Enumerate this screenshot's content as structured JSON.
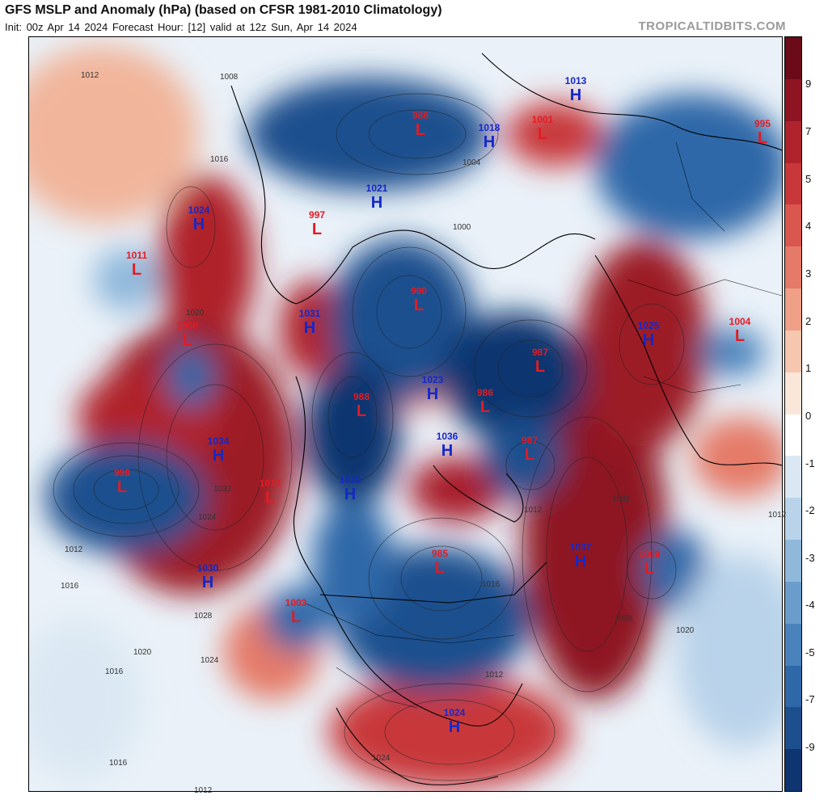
{
  "header": {
    "title": "GFS MSLP and Anomaly (hPa) (based on CFSR 1981-2010 Climatology)",
    "subtitle": "Init: 00z Apr 14 2024   Forecast Hour: [12]   valid at 12z Sun, Apr 14 2024",
    "brand": "TROPICALTIDBITS.COM"
  },
  "colorbar": {
    "labels": [
      "9",
      "7",
      "5",
      "4",
      "3",
      "2",
      "1",
      "0",
      "-1",
      "-2",
      "-3",
      "-4",
      "-5",
      "-7",
      "-9"
    ],
    "colors": [
      "#6b0a18",
      "#8e1424",
      "#b0232c",
      "#c8383a",
      "#d9574f",
      "#e57a68",
      "#efa087",
      "#f6c6af",
      "#fbe6da",
      "#ffffff",
      "#dbe8f3",
      "#b9d3ea",
      "#8fb8db",
      "#6a9dcc",
      "#4a82bb",
      "#2f68a8",
      "#1d4f8e",
      "#0f3570"
    ]
  },
  "pressure_centers": [
    {
      "type": "L",
      "value": "986"
    },
    {
      "type": "H",
      "value": "1013"
    },
    {
      "type": "H",
      "value": "1018"
    },
    {
      "type": "L",
      "value": "1001"
    },
    {
      "type": "L",
      "value": "995"
    },
    {
      "type": "H",
      "value": "1021"
    },
    {
      "type": "L",
      "value": "997"
    },
    {
      "type": "H",
      "value": "1024"
    },
    {
      "type": "L",
      "value": "1011"
    },
    {
      "type": "L",
      "value": "990"
    },
    {
      "type": "H",
      "value": "1031"
    },
    {
      "type": "L",
      "value": "1000"
    },
    {
      "type": "L",
      "value": "987"
    },
    {
      "type": "H",
      "value": "1025"
    },
    {
      "type": "L",
      "value": "1004"
    },
    {
      "type": "L",
      "value": "988"
    },
    {
      "type": "H",
      "value": "1023"
    },
    {
      "type": "L",
      "value": "986"
    },
    {
      "type": "H",
      "value": "1034"
    },
    {
      "type": "H",
      "value": "1036"
    },
    {
      "type": "L",
      "value": "987"
    },
    {
      "type": "L",
      "value": "998"
    },
    {
      "type": "L",
      "value": "1013"
    },
    {
      "type": "H",
      "value": "1019"
    },
    {
      "type": "L",
      "value": "985"
    },
    {
      "type": "H",
      "value": "1037"
    },
    {
      "type": "L",
      "value": "1009"
    },
    {
      "type": "H",
      "value": "1030"
    },
    {
      "type": "L",
      "value": "1003"
    },
    {
      "type": "H",
      "value": "1024"
    }
  ],
  "isobar_labels": [
    "1012",
    "1008",
    "1016",
    "1020",
    "1024",
    "1028",
    "1032",
    "1004",
    "1000",
    "1012",
    "1016",
    "1020",
    "1016",
    "1012",
    "1028",
    "1032",
    "1024",
    "1020",
    "1016",
    "1012",
    "1012",
    "1016",
    "1012",
    "1024"
  ]
}
